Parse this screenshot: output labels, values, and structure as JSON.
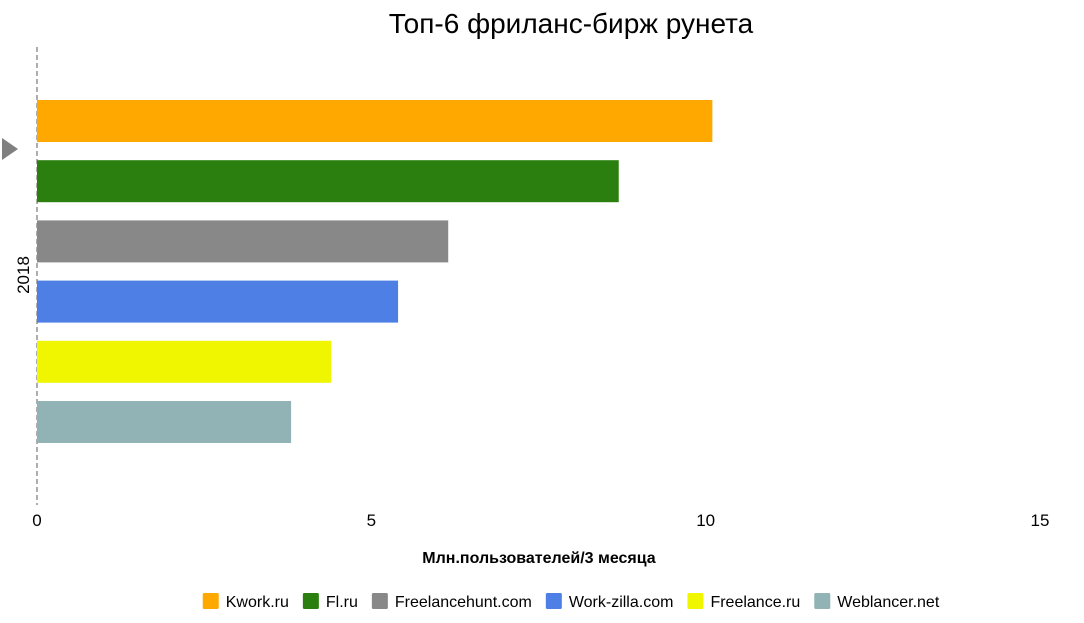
{
  "chart_data": {
    "type": "bar",
    "orientation": "horizontal",
    "title": "Топ-6 фриланс-бирж рунета",
    "xlabel": "Млн.пользователей/3 месяца",
    "ylabel": "",
    "categories": [
      "2018"
    ],
    "xlim": [
      0,
      15
    ],
    "xticks": [
      0,
      5,
      10,
      15
    ],
    "xtick_labels": [
      "0",
      "5",
      "10",
      "15"
    ],
    "grid": false,
    "legend_position": "bottom",
    "series": [
      {
        "name": "Kwork.ru",
        "values": [
          10.1
        ],
        "color": "#FFA800"
      },
      {
        "name": "Fl.ru",
        "values": [
          8.7
        ],
        "color": "#2A7F0E"
      },
      {
        "name": "Freelancehunt.com",
        "values": [
          6.15
        ],
        "color": "#888888"
      },
      {
        "name": "Work-zilla.com",
        "values": [
          5.4
        ],
        "color": "#4D7FE4"
      },
      {
        "name": "Freelance.ru",
        "values": [
          4.4
        ],
        "color": "#F0F500"
      },
      {
        "name": "Weblancer.net",
        "values": [
          3.8
        ],
        "color": "#91B3B5"
      }
    ]
  }
}
